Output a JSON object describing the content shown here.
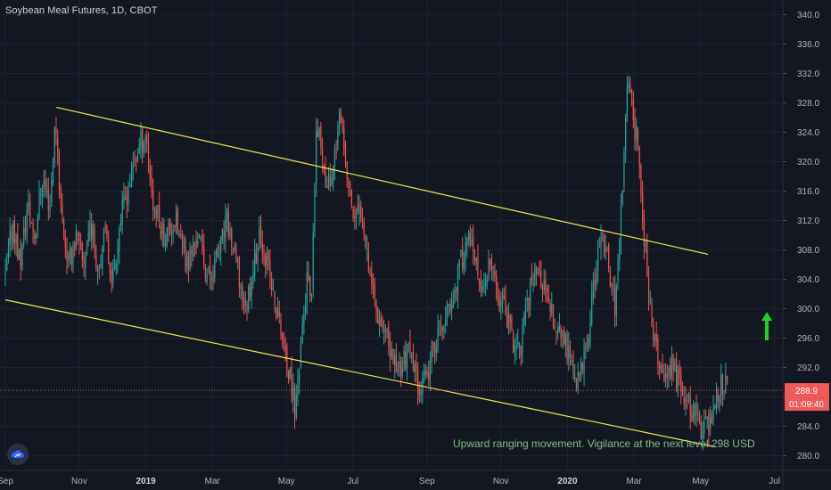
{
  "header": {
    "title": "Soybean Meal Futures, 1D, CBOT"
  },
  "annotation": {
    "text": "Upward ranging movement. Vigilance at the next level 298 USD"
  },
  "colors": {
    "background": "#131722",
    "grid": "#1e2230",
    "up": "#26a69a",
    "down": "#ef5350",
    "trendline": "#f2e84b",
    "arrow": "#1fd21f",
    "price_tag": "#f05a5a"
  },
  "icons": {
    "logo": "tradingview-cloud-icon",
    "arrow": "arrow-up-icon"
  },
  "chart_data": {
    "type": "candlestick",
    "ylim": [
      278,
      342
    ],
    "y_ticks": [
      "340.0",
      "336.0",
      "332.0",
      "328.0",
      "324.0",
      "320.0",
      "316.0",
      "312.0",
      "308.0",
      "304.0",
      "300.0",
      "296.0",
      "292.0",
      "288.0",
      "284.0",
      "280.0"
    ],
    "x_ticks": [
      {
        "label": "Sep",
        "t": 0.0
      },
      {
        "label": "Nov",
        "t": 0.1
      },
      {
        "label": "2019",
        "t": 0.19,
        "year": true
      },
      {
        "label": "Mar",
        "t": 0.28
      },
      {
        "label": "May",
        "t": 0.38
      },
      {
        "label": "Jul",
        "t": 0.47
      },
      {
        "label": "Sep",
        "t": 0.57
      },
      {
        "label": "Nov",
        "t": 0.67
      },
      {
        "label": "2020",
        "t": 0.76,
        "year": true
      },
      {
        "label": "Mar",
        "t": 0.85
      },
      {
        "label": "May",
        "t": 0.94
      },
      {
        "label": "Jul",
        "t": 1.04
      }
    ],
    "price_path": [
      [
        0.0,
        304
      ],
      [
        0.01,
        312
      ],
      [
        0.02,
        306
      ],
      [
        0.03,
        314
      ],
      [
        0.04,
        310
      ],
      [
        0.05,
        318
      ],
      [
        0.06,
        314
      ],
      [
        0.068,
        326
      ],
      [
        0.075,
        314
      ],
      [
        0.085,
        306
      ],
      [
        0.095,
        310
      ],
      [
        0.105,
        306
      ],
      [
        0.115,
        312
      ],
      [
        0.125,
        306
      ],
      [
        0.135,
        310
      ],
      [
        0.145,
        304
      ],
      [
        0.155,
        312
      ],
      [
        0.165,
        316
      ],
      [
        0.18,
        322
      ],
      [
        0.19,
        324
      ],
      [
        0.2,
        314
      ],
      [
        0.215,
        310
      ],
      [
        0.23,
        312
      ],
      [
        0.245,
        306
      ],
      [
        0.26,
        310
      ],
      [
        0.275,
        304
      ],
      [
        0.29,
        308
      ],
      [
        0.3,
        312
      ],
      [
        0.312,
        306
      ],
      [
        0.325,
        300
      ],
      [
        0.335,
        306
      ],
      [
        0.345,
        310
      ],
      [
        0.355,
        306
      ],
      [
        0.365,
        300
      ],
      [
        0.372,
        298
      ],
      [
        0.38,
        292
      ],
      [
        0.386,
        290
      ],
      [
        0.392,
        286
      ],
      [
        0.4,
        296
      ],
      [
        0.408,
        304
      ],
      [
        0.414,
        300
      ],
      [
        0.42,
        324
      ],
      [
        0.428,
        322
      ],
      [
        0.436,
        316
      ],
      [
        0.444,
        320
      ],
      [
        0.452,
        326
      ],
      [
        0.462,
        318
      ],
      [
        0.472,
        312
      ],
      [
        0.482,
        314
      ],
      [
        0.492,
        306
      ],
      [
        0.502,
        300
      ],
      [
        0.51,
        298
      ],
      [
        0.52,
        294
      ],
      [
        0.532,
        292
      ],
      [
        0.545,
        294
      ],
      [
        0.558,
        290
      ],
      [
        0.57,
        290
      ],
      [
        0.582,
        296
      ],
      [
        0.594,
        298
      ],
      [
        0.606,
        302
      ],
      [
        0.615,
        306
      ],
      [
        0.625,
        310
      ],
      [
        0.635,
        306
      ],
      [
        0.645,
        302
      ],
      [
        0.655,
        306
      ],
      [
        0.665,
        302
      ],
      [
        0.675,
        300
      ],
      [
        0.685,
        296
      ],
      [
        0.695,
        294
      ],
      [
        0.705,
        300
      ],
      [
        0.715,
        306
      ],
      [
        0.725,
        304
      ],
      [
        0.735,
        300
      ],
      [
        0.745,
        298
      ],
      [
        0.755,
        296
      ],
      [
        0.765,
        292
      ],
      [
        0.775,
        290
      ],
      [
        0.785,
        294
      ],
      [
        0.795,
        302
      ],
      [
        0.805,
        310
      ],
      [
        0.815,
        306
      ],
      [
        0.825,
        300
      ],
      [
        0.835,
        318
      ],
      [
        0.842,
        332
      ],
      [
        0.848,
        326
      ],
      [
        0.854,
        324
      ],
      [
        0.862,
        312
      ],
      [
        0.872,
        300
      ],
      [
        0.88,
        294
      ],
      [
        0.89,
        290
      ],
      [
        0.9,
        292
      ],
      [
        0.91,
        290
      ],
      [
        0.92,
        288
      ],
      [
        0.93,
        286
      ],
      [
        0.94,
        284
      ],
      [
        0.95,
        284
      ],
      [
        0.96,
        288
      ],
      [
        0.97,
        290
      ],
      [
        0.976,
        289
      ]
    ],
    "trendlines": [
      {
        "name": "upper",
        "from": {
          "t": 0.069,
          "y": 327.4
        },
        "to": {
          "t": 0.95,
          "y": 307.4
        }
      },
      {
        "name": "lower",
        "from": {
          "t": 0.0,
          "y": 301.2
        },
        "to": {
          "t": 0.96,
          "y": 281.2
        }
      }
    ],
    "last_price": "288.9",
    "countdown": "01:09:40"
  }
}
